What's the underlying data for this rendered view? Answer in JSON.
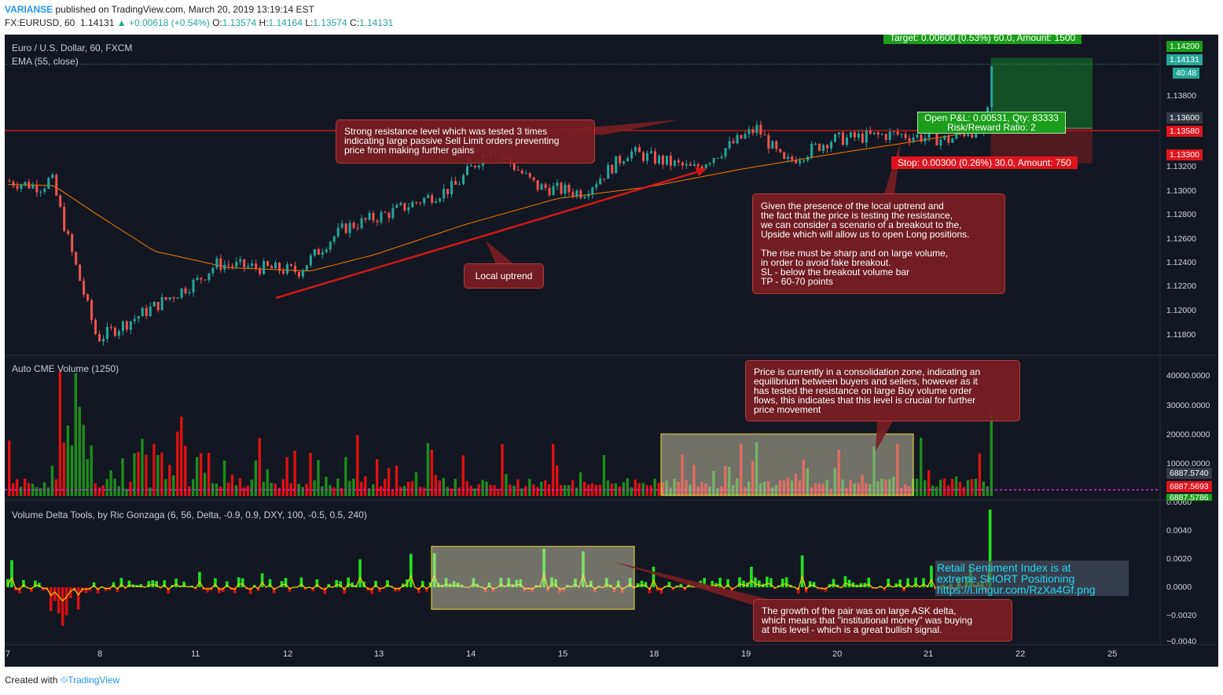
{
  "header": {
    "publisher": "VARIANSE",
    "published_text": "published on TradingView.com, March 20, 2019 13:19:14 EST",
    "symbol": "FX:EURUSD, 60",
    "last": "1.14131",
    "change": "▲ +0.00618 (+0.54%)",
    "o_label": "O:",
    "o_value": "1.13574",
    "h_label": "H:",
    "h_value": "1.14164",
    "l_label": "L:",
    "l_value": "1.13574",
    "c_label": "C:",
    "c_value": "1.14131"
  },
  "footer": {
    "created_with": "Created with",
    "brand": "TradingView"
  },
  "panes": {
    "price_title": "Euro / U.S. Dollar, 60, FXCM",
    "ema_title": "EMA (55, close)",
    "volume_title": "Auto CME  Volume (1250)",
    "delta_title": "Volume Delta Tools, by Ric Gonzaga (6, 56, Delta, -0.9, 0.9, DXY, 100, -0.5, 0.5, 240)"
  },
  "trade": {
    "target": "Target: 0.00600 (0.53%) 60.0, Amount: 1500",
    "stop": "Stop: 0.00300 (0.26%) 30.0, Amount: 750",
    "pnl": "Open P&L: 0.00531, Qty: 83333\nRisk/Reward Ratio: 2"
  },
  "price_tags": {
    "t1": "1.14200",
    "t2": "1.14131",
    "t3": "40:48",
    "t4": "1.13600",
    "t5": "1.13580",
    "t6": "1.13300"
  },
  "volume_tags": {
    "v1": "6887.5740",
    "v2": "6887.5693",
    "v3": "6887.5786"
  },
  "annotations": {
    "resistance": "Strong resistance level which was tested 3 times\nindicating large passive Sell Limit orders preventing\nprice from making further gains",
    "uptrend": "Local uptrend",
    "breakout": "Given the presence of the local uptrend and\nthe fact that the price is testing the resistance,\nwe can consider a scenario of a breakout to the,\nUpside which will allow us to open Long positions.\n\nThe rise must be sharp and on large volume,\nin order to avoid fake breakout.\nSL - below the breakout volume bar\nTP - 60-70 points",
    "consolidation": "Price is currently in a consolidation zone, indicating an\nequilibrium between buyers and sellers, however as it\nhas tested the resistance on large Buy volume order\nflows, this indicates that this level is crucial for further\nprice movement",
    "ask_delta": "The growth of the pair was on large ASK delta,\nwhich means that \"institutional money\" was buying\nat this level - which is a great bullish signal.",
    "sentiment": "Retail Sentiment Index is at\nextreme SHORT Positioning\nhttps://i.imgur.com/RzXa4Gf.png"
  },
  "colors": {
    "up": "#26a69a",
    "down": "#ef5350",
    "ema": "#f57c00",
    "bg": "#131722",
    "vol_up": "#1b8e1b",
    "vol_down": "#e01010",
    "delta_up": "#22e022",
    "delta_down": "#d41010"
  },
  "chart_data": [
    {
      "type": "candlestick",
      "title": "Euro / U.S. Dollar, 60, FXCM",
      "x_ticks": [
        "7",
        "8",
        "11",
        "12",
        "13",
        "14",
        "15",
        "18",
        "19",
        "20",
        "21",
        "22",
        "25"
      ],
      "y_ticks": [
        "1.13800",
        "1.13200",
        "1.13000",
        "1.12800",
        "1.12600",
        "1.12400",
        "1.12200",
        "1.12000",
        "1.11800"
      ],
      "ylim": [
        1.1168,
        1.144
      ],
      "key_path": [
        {
          "d": 0.0,
          "p": 1.1315
        },
        {
          "d": 0.4,
          "p": 1.131
        },
        {
          "d": 0.5,
          "p": 1.1318
        },
        {
          "d": 0.7,
          "p": 1.126
        },
        {
          "d": 0.85,
          "p": 1.122
        },
        {
          "d": 1.0,
          "p": 1.118
        },
        {
          "d": 1.35,
          "p": 1.1195
        },
        {
          "d": 2.1,
          "p": 1.123
        },
        {
          "d": 2.3,
          "p": 1.1244
        },
        {
          "d": 3.2,
          "p": 1.1238
        },
        {
          "d": 3.5,
          "p": 1.1262
        },
        {
          "d": 3.7,
          "p": 1.1275
        },
        {
          "d": 4.2,
          "p": 1.1288
        },
        {
          "d": 4.9,
          "p": 1.131
        },
        {
          "d": 5.3,
          "p": 1.1345
        },
        {
          "d": 5.8,
          "p": 1.131
        },
        {
          "d": 6.3,
          "p": 1.1305
        },
        {
          "d": 6.8,
          "p": 1.134
        },
        {
          "d": 7.5,
          "p": 1.1325
        },
        {
          "d": 8.2,
          "p": 1.136
        },
        {
          "d": 8.5,
          "p": 1.133
        },
        {
          "d": 9.0,
          "p": 1.135
        },
        {
          "d": 9.7,
          "p": 1.1355
        },
        {
          "d": 10.3,
          "p": 1.135
        },
        {
          "d": 10.5,
          "p": 1.1358
        },
        {
          "d": 10.7,
          "p": 1.1357
        },
        {
          "d": 10.76,
          "p": 1.1413
        }
      ],
      "ema_path": [
        {
          "d": 0.0,
          "p": 1.1312
        },
        {
          "d": 0.5,
          "p": 1.1311
        },
        {
          "d": 1.0,
          "p": 1.1285
        },
        {
          "d": 1.6,
          "p": 1.1255
        },
        {
          "d": 2.4,
          "p": 1.1241
        },
        {
          "d": 3.3,
          "p": 1.1238
        },
        {
          "d": 4.0,
          "p": 1.1252
        },
        {
          "d": 5.0,
          "p": 1.1278
        },
        {
          "d": 6.0,
          "p": 1.13
        },
        {
          "d": 7.0,
          "p": 1.131
        },
        {
          "d": 8.0,
          "p": 1.1325
        },
        {
          "d": 9.0,
          "p": 1.1338
        },
        {
          "d": 10.0,
          "p": 1.135
        },
        {
          "d": 10.76,
          "p": 1.136
        }
      ],
      "resistance_level": 1.1358,
      "position": {
        "entry": 1.136,
        "target": 1.142,
        "stop": 1.133
      }
    },
    {
      "type": "bar",
      "title": "Auto CME  Volume (1250)",
      "y_ticks": [
        "40000.0000",
        "30000.0000",
        "20000.0000",
        "10000.0000"
      ],
      "ylim": [
        0,
        45000
      ]
    },
    {
      "type": "area",
      "title": "Volume Delta Tools, by Ric Gonzaga (6, 56, Delta, -0.9, 0.9, DXY, 100, -0.5, 0.5, 240)",
      "y_ticks": [
        "0.0060",
        "0.0040",
        "0.0020",
        "0.0000",
        "−0.0020",
        "−0.0040"
      ],
      "ylim": [
        -0.004,
        0.006
      ]
    }
  ]
}
